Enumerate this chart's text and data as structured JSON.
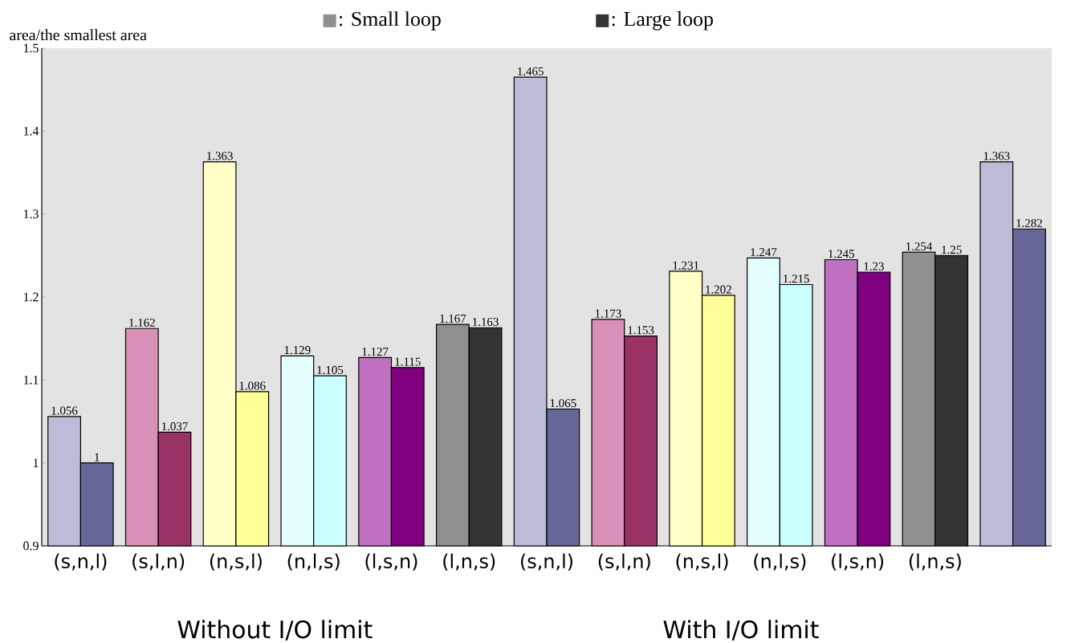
{
  "chart_data": {
    "type": "bar",
    "ylabel": "area/the smallest area",
    "categories": [
      "(s,n,l)",
      "(s,l,n)",
      "(n,s,l)",
      "(n,l,s)",
      "(l,s,n)",
      "(l,n,s)",
      "(s,n,l)",
      "(s,l,n)",
      "(n,s,l)",
      "(n,l,s)",
      "(l,s,n)",
      "(l,n,s)",
      null
    ],
    "series": [
      {
        "name": ": Small loop",
        "color": "#909090",
        "colors": [
          "#bcbcd8",
          "#d890b8",
          "#ffffc8",
          "#e4ffff",
          "#c070c0",
          "#909090",
          "#bcbcd8",
          "#d890b8",
          "#ffffc8",
          "#e4ffff",
          "#c070c0",
          "#909090",
          "#bcbcd8"
        ],
        "values": [
          1.056,
          1.162,
          1.363,
          1.129,
          1.127,
          1.167,
          1.465,
          1.173,
          1.231,
          1.247,
          1.245,
          1.254,
          1.363
        ]
      },
      {
        "name": ": Large loop",
        "color": "#333333",
        "colors": [
          "#666699",
          "#993366",
          "#ffff99",
          "#ccffff",
          "#800080",
          "#333333",
          "#666699",
          "#993366",
          "#ffff99",
          "#ccffff",
          "#800080",
          "#333333",
          "#666699"
        ],
        "values": [
          1,
          1.037,
          1.086,
          1.105,
          1.115,
          1.163,
          1.065,
          1.153,
          1.202,
          1.215,
          1.23,
          1.25,
          1.282
        ]
      }
    ],
    "ylim": [
      0.9,
      1.5
    ],
    "yticks": [
      0.9,
      1,
      1.1,
      1.2,
      1.3,
      1.4,
      1.5
    ],
    "data_labels": true,
    "legend": "top",
    "annotations": [
      "Without I/O limit",
      "With I/O limit"
    ]
  }
}
